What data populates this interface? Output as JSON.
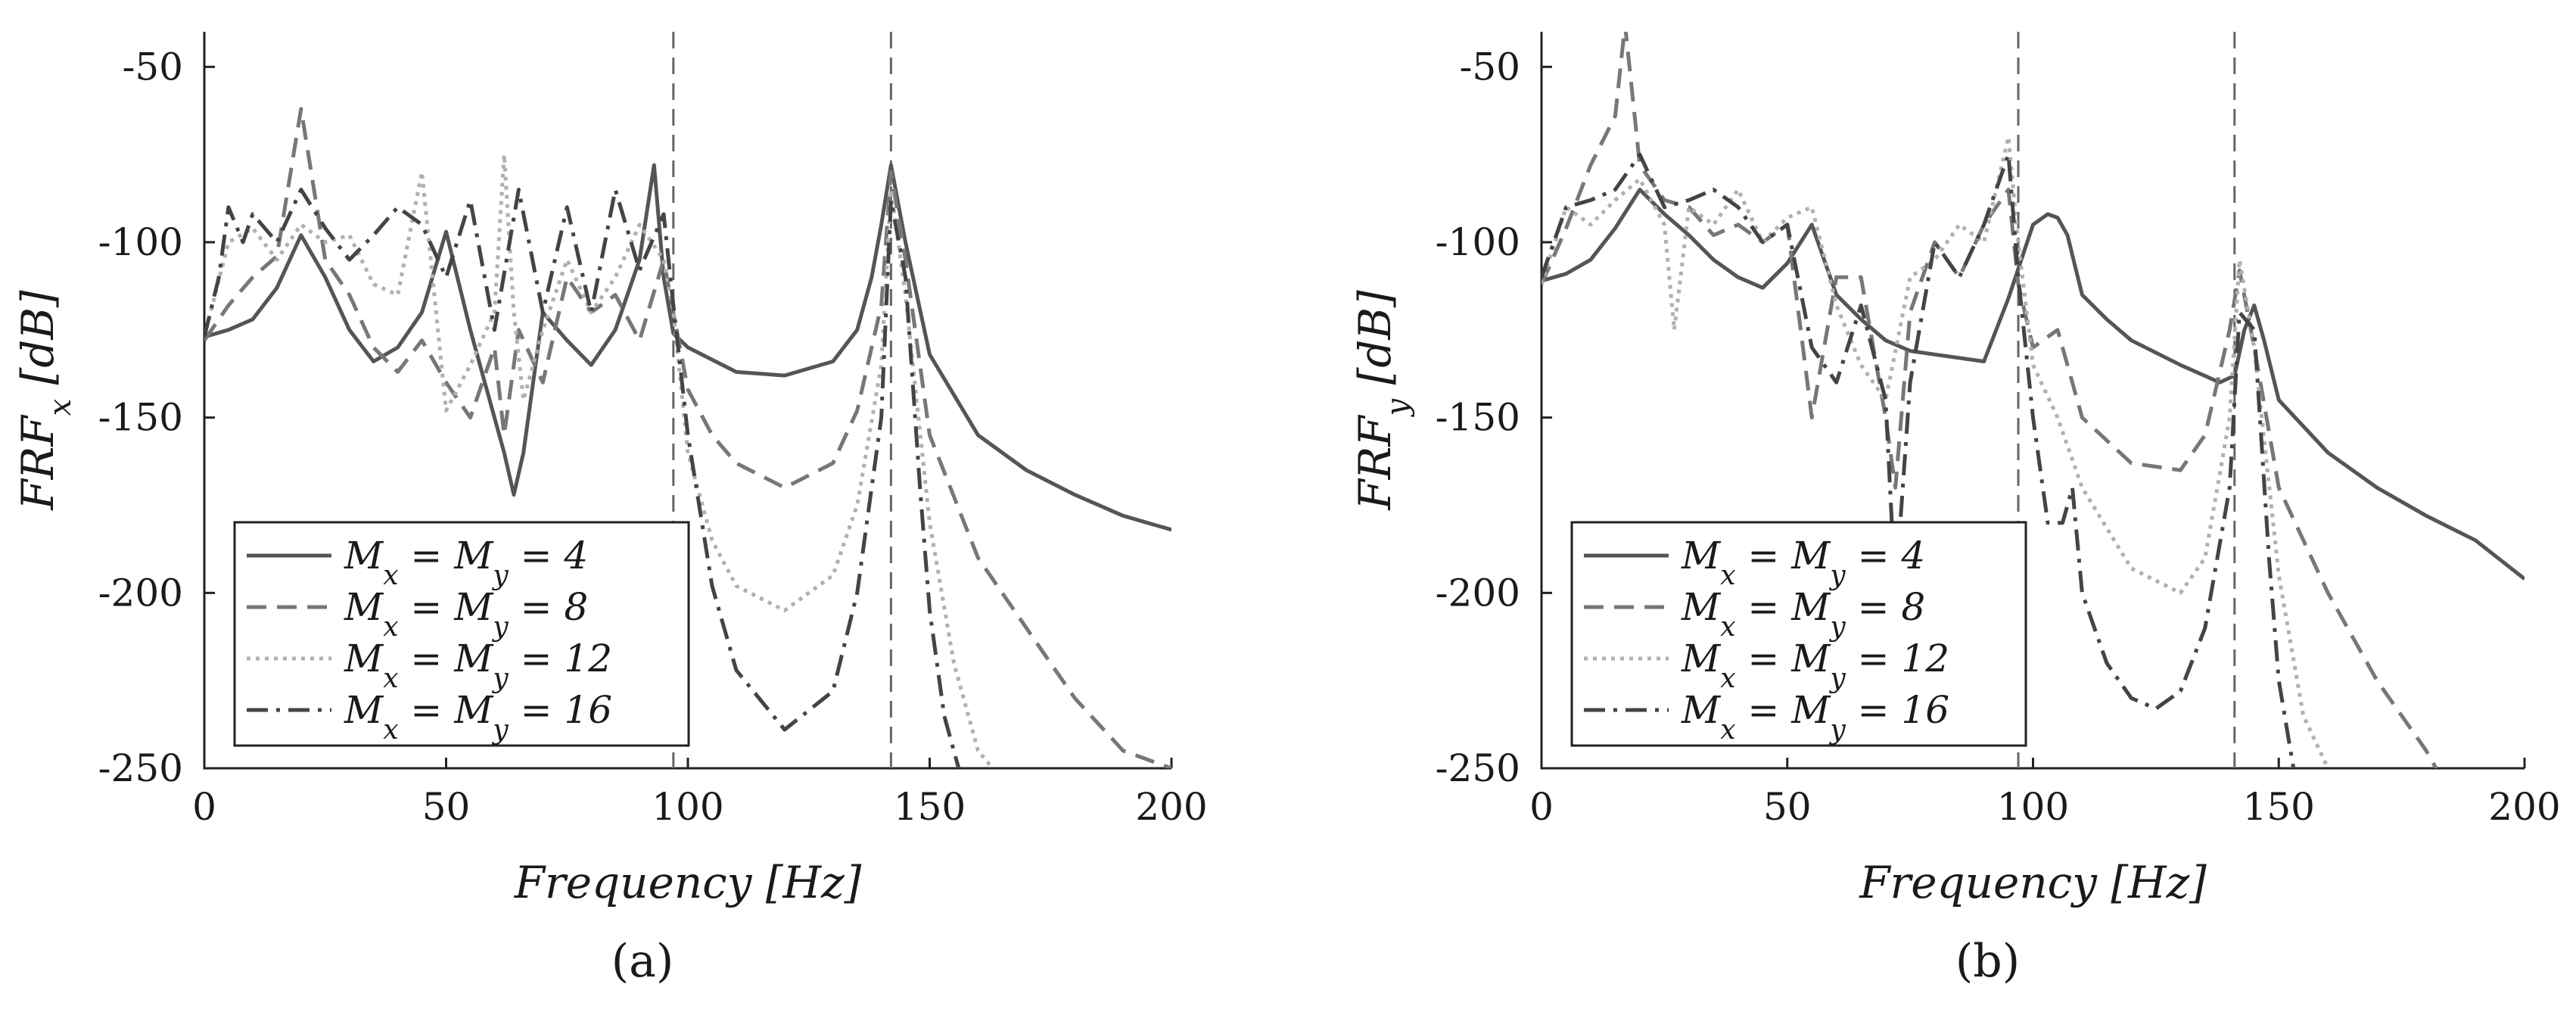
{
  "figure": {
    "panel_labels": [
      "(a)",
      "(b)"
    ],
    "legend_labels": [
      "M_x = M_y = 4",
      "M_x = M_y = 8",
      "M_x = M_y = 12",
      "M_x = M_y = 16"
    ],
    "series_styles": [
      {
        "name": "M_x = M_y = 4",
        "color": "#555555",
        "dash": "solid"
      },
      {
        "name": "M_x = M_y = 8",
        "color": "#777777",
        "dash": "dashed"
      },
      {
        "name": "M_x = M_y = 12",
        "color": "#b0b0b0",
        "dash": "dotted"
      },
      {
        "name": "M_x = M_y = 16",
        "color": "#444444",
        "dash": "dashdot"
      }
    ]
  },
  "chart_data": [
    {
      "type": "line",
      "panel": "(a)",
      "xlabel": "Frequency [Hz]",
      "ylabel": "FRF_x [dB]",
      "xlim": [
        0,
        200
      ],
      "ylim": [
        -250,
        -40
      ],
      "xticks": [
        0,
        50,
        100,
        150,
        200
      ],
      "yticks": [
        -50,
        -100,
        -150,
        -200,
        -250
      ],
      "vlines": [
        97,
        142
      ],
      "legend_position": "bottom-left",
      "series": [
        {
          "name": "M_x = M_y = 4",
          "x": [
            0,
            5,
            10,
            15,
            20,
            25,
            30,
            35,
            40,
            45,
            50,
            55,
            60,
            62,
            64,
            66,
            68,
            70,
            75,
            80,
            85,
            90,
            93,
            95,
            97,
            100,
            110,
            120,
            130,
            135,
            138,
            140,
            142,
            145,
            150,
            160,
            170,
            180,
            190,
            200
          ],
          "y": [
            -127,
            -125,
            -122,
            -113,
            -98,
            -110,
            -125,
            -134,
            -130,
            -120,
            -97,
            -125,
            -150,
            -160,
            -172,
            -160,
            -140,
            -120,
            -128,
            -135,
            -125,
            -105,
            -78,
            -110,
            -126,
            -130,
            -137,
            -138,
            -134,
            -125,
            -110,
            -95,
            -78,
            -100,
            -132,
            -155,
            -165,
            -172,
            -178,
            -182
          ]
        },
        {
          "name": "M_x = M_y = 8",
          "x": [
            0,
            5,
            10,
            15,
            20,
            25,
            30,
            35,
            40,
            45,
            50,
            55,
            60,
            62,
            65,
            70,
            75,
            80,
            85,
            90,
            95,
            97,
            100,
            105,
            110,
            120,
            130,
            135,
            140,
            142,
            145,
            150,
            160,
            170,
            180,
            190,
            200
          ],
          "y": [
            -128,
            -118,
            -110,
            -104,
            -62,
            -105,
            -115,
            -130,
            -137,
            -128,
            -140,
            -150,
            -130,
            -155,
            -125,
            -140,
            -110,
            -120,
            -115,
            -128,
            -105,
            -120,
            -142,
            -155,
            -163,
            -170,
            -163,
            -148,
            -118,
            -80,
            -105,
            -155,
            -190,
            -210,
            -230,
            -245,
            -250
          ]
        },
        {
          "name": "M_x = M_y = 12",
          "x": [
            0,
            5,
            10,
            15,
            20,
            25,
            30,
            35,
            40,
            45,
            50,
            55,
            60,
            62,
            64,
            66,
            70,
            75,
            80,
            85,
            90,
            95,
            97,
            100,
            105,
            110,
            120,
            130,
            135,
            140,
            142,
            145,
            150,
            155,
            160,
            163
          ],
          "y": [
            -127,
            -100,
            -96,
            -105,
            -95,
            -100,
            -98,
            -112,
            -115,
            -80,
            -148,
            -135,
            -120,
            -75,
            -120,
            -145,
            -125,
            -105,
            -120,
            -110,
            -95,
            -105,
            -120,
            -160,
            -185,
            -198,
            -205,
            -195,
            -175,
            -135,
            -85,
            -115,
            -180,
            -220,
            -245,
            -250
          ]
        },
        {
          "name": "M_x = M_y = 16",
          "x": [
            0,
            3,
            5,
            8,
            10,
            15,
            20,
            25,
            30,
            35,
            40,
            45,
            50,
            55,
            60,
            65,
            70,
            75,
            80,
            85,
            90,
            95,
            97,
            100,
            105,
            110,
            120,
            130,
            135,
            140,
            142,
            145,
            148,
            150,
            153,
            156
          ],
          "y": [
            -127,
            -110,
            -90,
            -100,
            -92,
            -100,
            -85,
            -96,
            -105,
            -98,
            -90,
            -95,
            -110,
            -88,
            -125,
            -85,
            -120,
            -90,
            -120,
            -85,
            -108,
            -92,
            -118,
            -155,
            -198,
            -222,
            -239,
            -228,
            -200,
            -150,
            -88,
            -110,
            -170,
            -205,
            -235,
            -250
          ]
        }
      ]
    },
    {
      "type": "line",
      "panel": "(b)",
      "xlabel": "Frequency [Hz]",
      "ylabel": "FRF_y [dB]",
      "xlim": [
        0,
        200
      ],
      "ylim": [
        -250,
        -40
      ],
      "xticks": [
        0,
        50,
        100,
        150,
        200
      ],
      "yticks": [
        -50,
        -100,
        -150,
        -200,
        -250
      ],
      "vlines": [
        97,
        141
      ],
      "legend_position": "bottom-left",
      "series": [
        {
          "name": "M_x = M_y = 4",
          "x": [
            0,
            5,
            10,
            15,
            20,
            25,
            30,
            35,
            40,
            45,
            50,
            55,
            60,
            65,
            70,
            75,
            80,
            90,
            95,
            100,
            103,
            105,
            107,
            110,
            115,
            120,
            130,
            138,
            141,
            143,
            145,
            147,
            150,
            160,
            170,
            180,
            190,
            200
          ],
          "y": [
            -111,
            -109,
            -105,
            -96,
            -85,
            -92,
            -98,
            -105,
            -110,
            -113,
            -106,
            -95,
            -115,
            -122,
            -128,
            -131,
            -132,
            -134,
            -116,
            -95,
            -92,
            -93,
            -98,
            -115,
            -122,
            -128,
            -135,
            -140,
            -138,
            -125,
            -118,
            -128,
            -145,
            -160,
            -170,
            -178,
            -185,
            -196
          ]
        },
        {
          "name": "M_x = M_y = 8",
          "x": [
            0,
            5,
            10,
            15,
            17,
            20,
            25,
            30,
            35,
            40,
            45,
            50,
            55,
            60,
            65,
            70,
            72,
            75,
            80,
            85,
            90,
            95,
            97,
            100,
            105,
            110,
            120,
            130,
            135,
            140,
            142,
            145,
            150,
            160,
            170,
            180,
            182
          ],
          "y": [
            -112,
            -96,
            -78,
            -64,
            -38,
            -78,
            -88,
            -90,
            -98,
            -95,
            -100,
            -95,
            -150,
            -110,
            -110,
            -150,
            -170,
            -120,
            -100,
            -110,
            -95,
            -85,
            -112,
            -130,
            -125,
            -150,
            -163,
            -165,
            -155,
            -125,
            -108,
            -130,
            -170,
            -200,
            -225,
            -245,
            -250
          ]
        },
        {
          "name": "M_x = M_y = 12",
          "x": [
            0,
            5,
            10,
            15,
            20,
            25,
            27,
            30,
            35,
            40,
            45,
            50,
            55,
            60,
            65,
            70,
            75,
            80,
            85,
            90,
            95,
            97,
            100,
            105,
            110,
            120,
            130,
            135,
            140,
            142,
            145,
            150,
            155,
            160
          ],
          "y": [
            -112,
            -90,
            -95,
            -88,
            -82,
            -95,
            -125,
            -90,
            -95,
            -85,
            -100,
            -93,
            -90,
            -118,
            -135,
            -145,
            -110,
            -105,
            -95,
            -100,
            -70,
            -100,
            -135,
            -150,
            -170,
            -193,
            -200,
            -190,
            -150,
            -105,
            -130,
            -195,
            -235,
            -250
          ]
        },
        {
          "name": "M_x = M_y = 16",
          "x": [
            0,
            5,
            10,
            15,
            20,
            25,
            30,
            35,
            40,
            45,
            50,
            55,
            60,
            65,
            70,
            72,
            75,
            80,
            85,
            90,
            95,
            97,
            100,
            103,
            106,
            108,
            110,
            115,
            120,
            125,
            130,
            135,
            140,
            142,
            145,
            148,
            150,
            153
          ],
          "y": [
            -110,
            -90,
            -88,
            -85,
            -75,
            -90,
            -88,
            -85,
            -90,
            -100,
            -95,
            -130,
            -140,
            -118,
            -145,
            -200,
            -140,
            -100,
            -110,
            -95,
            -75,
            -110,
            -150,
            -180,
            -180,
            -170,
            -200,
            -220,
            -230,
            -233,
            -228,
            -210,
            -170,
            -120,
            -125,
            -190,
            -225,
            -250
          ]
        }
      ]
    }
  ]
}
